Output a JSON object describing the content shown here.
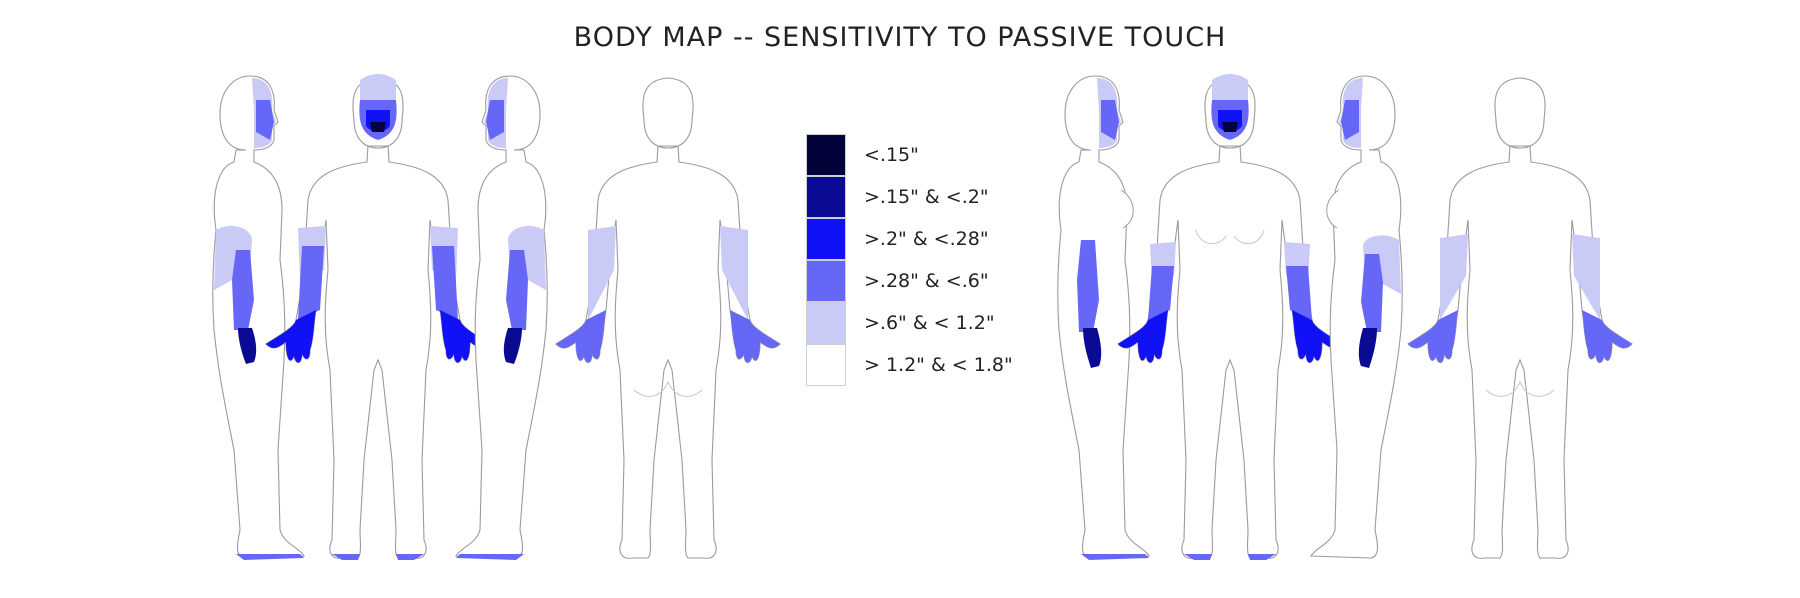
{
  "title": "BODY MAP -- SENSITIVITY TO PASSIVE TOUCH",
  "legend": [
    {
      "label": "<.15\"",
      "color": "#03033a"
    },
    {
      "label": ">.15\" & <.2\"",
      "color": "#0a0a92"
    },
    {
      "label": ">.2\" & <.28\"",
      "color": "#1111f5"
    },
    {
      "label": ">.28\" & <.6\"",
      "color": "#6666f7"
    },
    {
      "label": ">.6\" & < 1.2\"",
      "color": "#cacaf6"
    },
    {
      "label": "> 1.2\" & < 1.8\"",
      "color": "#ffffff"
    }
  ]
}
